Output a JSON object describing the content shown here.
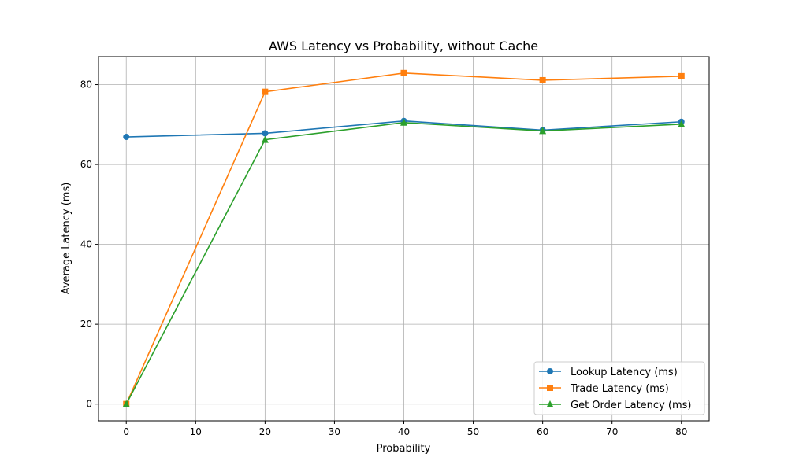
{
  "chart_data": {
    "type": "line",
    "title": "AWS Latency vs Probability, without Cache",
    "xlabel": "Probability",
    "ylabel": "Average Latency (ms)",
    "x": [
      0,
      20,
      40,
      60,
      80
    ],
    "xlim": [
      -4,
      84
    ],
    "ylim": [
      -4.2,
      87
    ],
    "xticks": [
      0,
      10,
      20,
      30,
      40,
      50,
      60,
      70,
      80
    ],
    "yticks": [
      0,
      20,
      40,
      60,
      80
    ],
    "grid": true,
    "legend_position": "lower-right",
    "series": [
      {
        "name": "Lookup Latency (ms)",
        "values": [
          66.9,
          67.8,
          70.9,
          68.6,
          70.7
        ],
        "color": "#1f77b4",
        "marker": "circle"
      },
      {
        "name": "Trade Latency (ms)",
        "values": [
          0,
          78.2,
          82.9,
          81.1,
          82.1
        ],
        "color": "#ff7f0e",
        "marker": "square"
      },
      {
        "name": "Get Order Latency (ms)",
        "values": [
          0,
          66.2,
          70.5,
          68.4,
          70.1
        ],
        "color": "#2ca02c",
        "marker": "triangle"
      }
    ]
  }
}
